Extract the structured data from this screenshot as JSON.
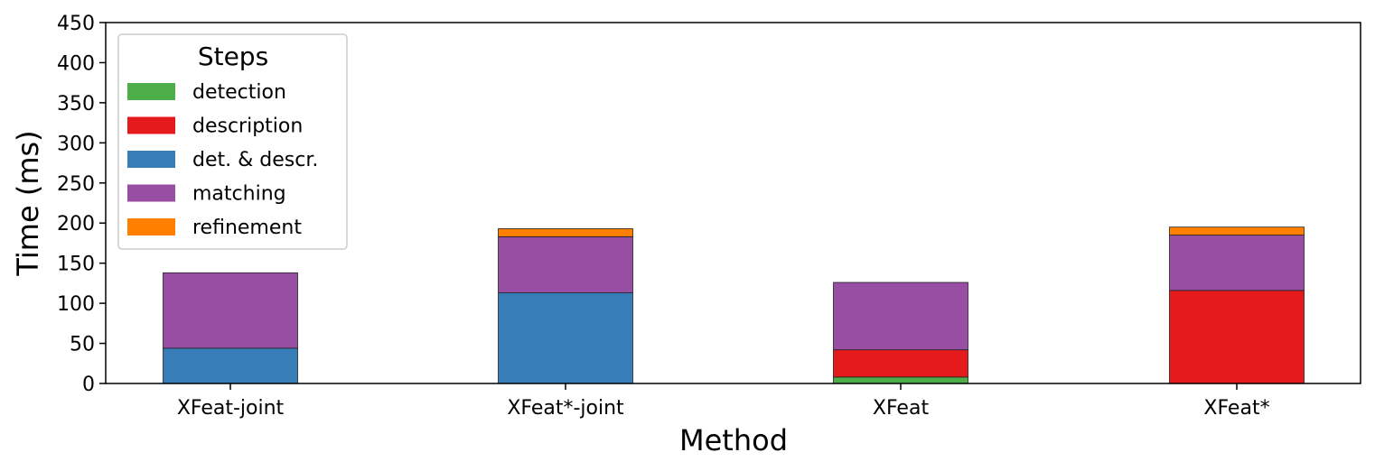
{
  "chart_data": {
    "type": "bar",
    "stacked": true,
    "categories": [
      "XFeat-joint",
      "XFeat*-joint",
      "XFeat",
      "XFeat*"
    ],
    "series": [
      {
        "name": "detection",
        "color": "#4daf4a",
        "values": [
          0,
          0,
          8,
          0
        ]
      },
      {
        "name": "description",
        "color": "#e41a1c",
        "values": [
          0,
          0,
          34,
          116
        ]
      },
      {
        "name": "det. & descr.",
        "color": "#377eb8",
        "values": [
          44,
          113,
          0,
          0
        ]
      },
      {
        "name": "matching",
        "color": "#984ea3",
        "values": [
          94,
          70,
          84,
          69
        ]
      },
      {
        "name": "refinement",
        "color": "#ff7f00",
        "values": [
          0,
          10,
          0,
          10
        ]
      }
    ],
    "xlabel": "Method",
    "ylabel": "Time (ms)",
    "ylim": [
      0,
      450
    ],
    "yticks": [
      "0",
      "50",
      "100",
      "150",
      "200",
      "250",
      "300",
      "350",
      "400",
      "450"
    ],
    "grid": false,
    "legend": {
      "title": "Steps",
      "placement": "top-left"
    }
  }
}
